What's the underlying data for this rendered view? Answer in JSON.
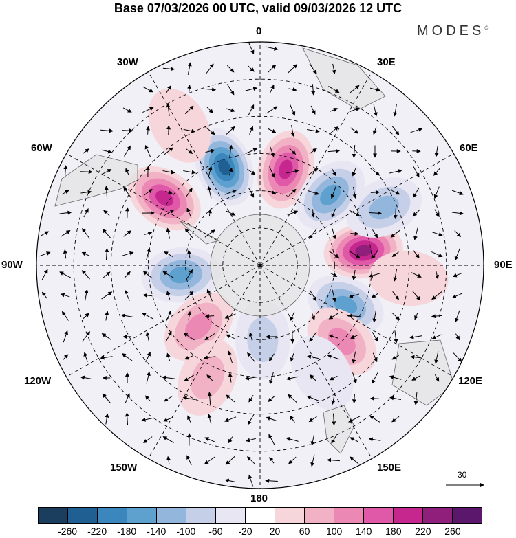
{
  "title": "Base 07/03/2026 00 UTC, valid 09/03/2026 12 UTC",
  "brand": "MODES",
  "brand_mark": "©",
  "longitude_labels": {
    "lon_0": "0",
    "lon_30e": "30E",
    "lon_60e": "60E",
    "lon_90e": "90E",
    "lon_120e": "120E",
    "lon_150e": "150E",
    "lon_180": "180",
    "lon_150w": "150W",
    "lon_120w": "120W",
    "lon_90w": "90W",
    "lon_60w": "60W",
    "lon_30w": "30W"
  },
  "reference_vector": {
    "label": "30"
  },
  "colorbar": {
    "colors": [
      "#1b3e5e",
      "#1f5f92",
      "#3b86bd",
      "#5ea1cf",
      "#93b6dc",
      "#c5cfe8",
      "#e8e6f2",
      "#ffffff",
      "#f6d6da",
      "#f2b2c6",
      "#ec88b4",
      "#e059a8",
      "#c6278f",
      "#901f7c",
      "#5a176c"
    ],
    "ticks": [
      "-260",
      "-220",
      "-180",
      "-140",
      "-100",
      "-60",
      "-20",
      "20",
      "60",
      "100",
      "140",
      "180",
      "220",
      "260"
    ]
  },
  "anomaly_cells": [
    {
      "lat": -48,
      "lon": -20,
      "value": -260
    },
    {
      "lat": -50,
      "lon": 15,
      "value": 230
    },
    {
      "lat": -43,
      "lon": -55,
      "value": 220
    },
    {
      "lat": -50,
      "lon": 45,
      "value": -190
    },
    {
      "lat": -48,
      "lon": 82,
      "value": 270
    },
    {
      "lat": -35,
      "lon": 65,
      "value": -140
    },
    {
      "lat": -58,
      "lon": -97,
      "value": -190
    },
    {
      "lat": -52,
      "lon": 115,
      "value": -170
    },
    {
      "lat": -55,
      "lon": -135,
      "value": 140
    },
    {
      "lat": -45,
      "lon": 133,
      "value": 120
    },
    {
      "lat": -60,
      "lon": 178,
      "value": -80
    },
    {
      "lat": -40,
      "lon": -155,
      "value": 90
    },
    {
      "lat": -30,
      "lon": 95,
      "value": 60
    },
    {
      "lat": -40,
      "lon": 150,
      "value": -60
    },
    {
      "lat": -25,
      "lon": -30,
      "value": 40
    }
  ]
}
